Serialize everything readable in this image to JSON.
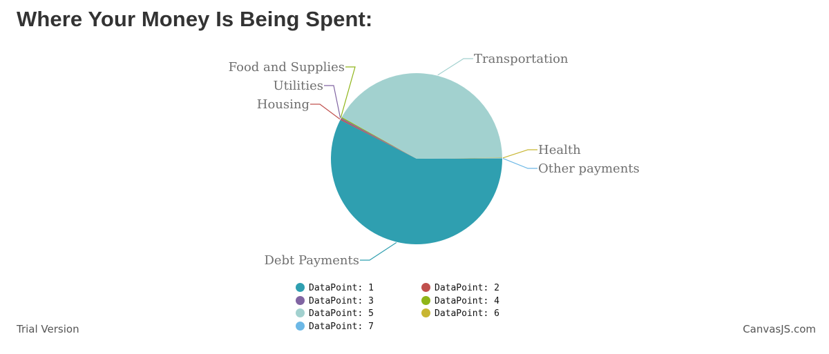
{
  "title": "Where Your Money Is Being Spent:",
  "chart_data": {
    "type": "pie",
    "title": "Where Your Money Is Being Spent:",
    "start_angle_deg": 0,
    "slices": [
      {
        "label": "Debt Payments",
        "value": 57.5,
        "color": "#2f9fb0",
        "legend": "DataPoint: 1"
      },
      {
        "label": "Housing",
        "value": 0.2,
        "color": "#c0504d",
        "legend": "DataPoint: 2"
      },
      {
        "label": "Utilities",
        "value": 0.2,
        "color": "#8064a2",
        "legend": "DataPoint: 3"
      },
      {
        "label": "Food and Supplies",
        "value": 0.2,
        "color": "#8fb519",
        "legend": "DataPoint: 4"
      },
      {
        "label": "Transportation",
        "value": 41.7,
        "color": "#a2d1cf",
        "legend": "DataPoint: 5"
      },
      {
        "label": "Health",
        "value": 0.1,
        "color": "#c8b632",
        "legend": "DataPoint: 6"
      },
      {
        "label": "Other payments",
        "value": 0.1,
        "color": "#6cb8e6",
        "legend": "DataPoint: 7"
      }
    ],
    "legend_position": "bottom"
  },
  "legend": [
    {
      "label": "DataPoint: 1",
      "color": "#2f9fb0"
    },
    {
      "label": "DataPoint: 2",
      "color": "#c0504d"
    },
    {
      "label": "DataPoint: 3",
      "color": "#8064a2"
    },
    {
      "label": "DataPoint: 4",
      "color": "#8fb519"
    },
    {
      "label": "DataPoint: 5",
      "color": "#a2d1cf"
    },
    {
      "label": "DataPoint: 6",
      "color": "#c8b632"
    },
    {
      "label": "DataPoint: 7",
      "color": "#6cb8e6"
    }
  ],
  "footer": {
    "trial": "Trial Version",
    "credit": "CanvasJS.com"
  }
}
